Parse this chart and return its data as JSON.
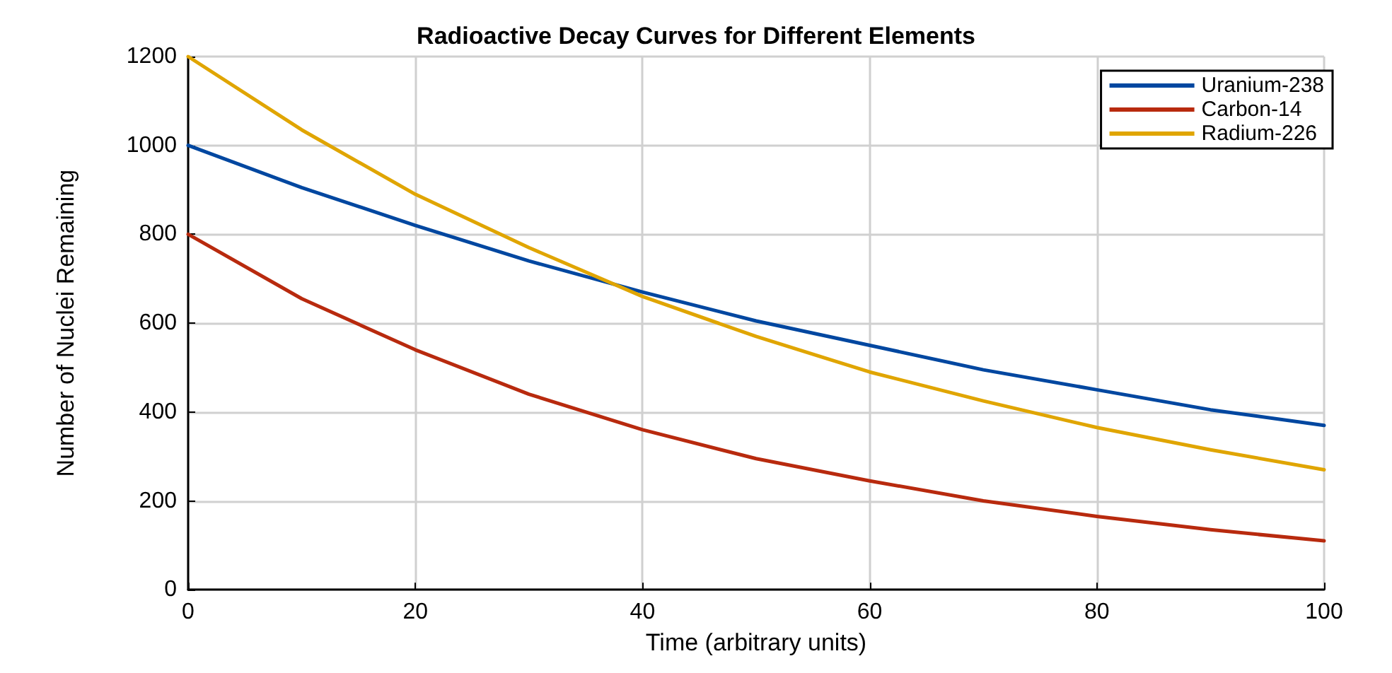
{
  "chart_data": {
    "type": "line",
    "title": "Radioactive Decay Curves for Different Elements",
    "xlabel": "Time (arbitrary units)",
    "ylabel": "Number of Nuclei Remaining",
    "x": [
      0,
      10,
      20,
      30,
      40,
      50,
      60,
      70,
      80,
      90,
      100
    ],
    "series": [
      {
        "name": "Uranium-238",
        "color": "#0047a0",
        "values": [
          1000,
          905,
          820,
          740,
          670,
          605,
          550,
          495,
          450,
          405,
          370
        ]
      },
      {
        "name": "Carbon-14",
        "color": "#b82a0e",
        "values": [
          800,
          655,
          540,
          440,
          360,
          295,
          245,
          200,
          165,
          135,
          110
        ]
      },
      {
        "name": "Radium-226",
        "color": "#e0a500",
        "values": [
          1200,
          1035,
          890,
          770,
          660,
          570,
          490,
          425,
          365,
          315,
          270
        ]
      }
    ],
    "xlim": [
      0,
      100
    ],
    "xticks": [
      0,
      20,
      40,
      60,
      80,
      100
    ],
    "ylim": [
      0,
      1200
    ],
    "yticks": [
      0,
      200,
      400,
      600,
      800,
      1000,
      1200
    ],
    "grid": true,
    "legend": "top right",
    "marker": "none",
    "line_style": "solid"
  }
}
